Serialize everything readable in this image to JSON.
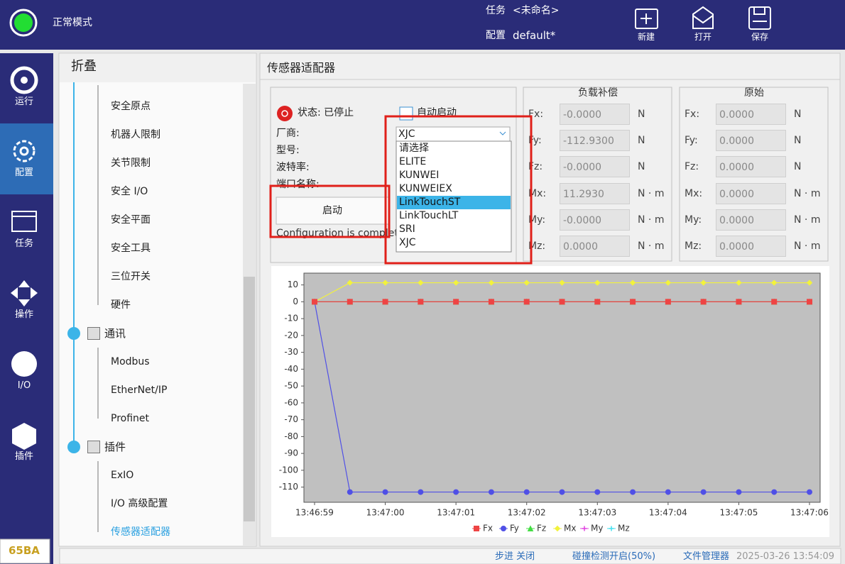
{
  "header": {
    "mode": "正常模式",
    "task_label": "任务",
    "task_value": "<未命名>",
    "config_label": "配置",
    "config_value": "default*",
    "buttons": [
      "新建",
      "打开",
      "保存"
    ]
  },
  "sidebar": {
    "items": [
      "运行",
      "配置",
      "任务",
      "操作",
      "I/O",
      "插件"
    ],
    "badge": "65BA"
  },
  "tree": {
    "title": "折叠",
    "safety_items": [
      "安全原点",
      "机器人限制",
      "关节限制",
      "安全 I/O",
      "安全平面",
      "安全工具",
      "三位开关",
      "硬件"
    ],
    "groups": [
      {
        "label": "通讯",
        "items": [
          "Modbus",
          "EtherNet/IP",
          "Profinet"
        ]
      },
      {
        "label": "插件",
        "items": [
          "ExIO",
          "I/O 高级配置",
          "传感器适配器"
        ]
      }
    ]
  },
  "panel": {
    "title": "传感器适配器",
    "status": "状态: 已停止",
    "auto_start": "自动启动",
    "fields": [
      "厂商:",
      "型号:",
      "波特率:",
      "端口名称:"
    ],
    "vendor_value": "XJC",
    "vendor_options": [
      "请选择",
      "ELITE",
      "KUNWEI",
      "KUNWEIEX",
      "LinkTouchST",
      "LinkTouchLT",
      "SRI",
      "XJC"
    ],
    "start_button": "启动",
    "message": "Configuration is complete"
  },
  "load_comp": {
    "title": "负载补偿",
    "rows": [
      {
        "label": "Fx:",
        "value": "-0.0000",
        "unit": "N"
      },
      {
        "label": "Fy:",
        "value": "-112.9300",
        "unit": "N"
      },
      {
        "label": "Fz:",
        "value": "-0.0000",
        "unit": "N"
      },
      {
        "label": "Mx:",
        "value": "11.2930",
        "unit": "N · m"
      },
      {
        "label": "My:",
        "value": "-0.0000",
        "unit": "N · m"
      },
      {
        "label": "Mz:",
        "value": "0.0000",
        "unit": "N · m"
      }
    ]
  },
  "raw": {
    "title": "原始",
    "rows": [
      {
        "label": "Fx:",
        "value": "0.0000",
        "unit": "N"
      },
      {
        "label": "Fy:",
        "value": "0.0000",
        "unit": "N"
      },
      {
        "label": "Fz:",
        "value": "0.0000",
        "unit": "N"
      },
      {
        "label": "Mx:",
        "value": "0.0000",
        "unit": "N · m"
      },
      {
        "label": "My:",
        "value": "0.0000",
        "unit": "N · m"
      },
      {
        "label": "Mz:",
        "value": "0.0000",
        "unit": "N · m"
      }
    ]
  },
  "chart_data": {
    "type": "line",
    "categories": [
      "13:46:59",
      null,
      "13:47:00",
      null,
      "13:47:01",
      null,
      "13:47:02",
      null,
      "13:47:03",
      null,
      "13:47:04",
      null,
      "13:47:05",
      null,
      "13:47:06"
    ],
    "ylim": [
      -119,
      17
    ],
    "yticks": [
      10,
      0,
      -10,
      -20,
      -30,
      -40,
      -50,
      -60,
      -70,
      -80,
      -90,
      -100,
      -110
    ],
    "grid": false,
    "background": "#c0c0c0",
    "series": [
      {
        "name": "Fx",
        "color": "#ee4444",
        "marker": "square",
        "values": [
          0,
          0,
          0,
          0,
          0,
          0,
          0,
          0,
          0,
          0,
          0,
          0,
          0,
          0,
          0
        ]
      },
      {
        "name": "Fy",
        "color": "#5050e6",
        "marker": "circle",
        "values": [
          0,
          -112.93,
          -112.93,
          -112.93,
          -112.93,
          -112.93,
          -112.93,
          -112.93,
          -112.93,
          -112.93,
          -112.93,
          -112.93,
          -112.93,
          -112.93,
          -112.93
        ]
      },
      {
        "name": "Fz",
        "color": "#44dd44",
        "marker": "triangle",
        "values": [
          0,
          0,
          0,
          0,
          0,
          0,
          0,
          0,
          0,
          0,
          0,
          0,
          0,
          0,
          0
        ]
      },
      {
        "name": "Mx",
        "color": "#f2f23c",
        "marker": "diamond",
        "values": [
          0,
          11.293,
          11.293,
          11.293,
          11.293,
          11.293,
          11.293,
          11.293,
          11.293,
          11.293,
          11.293,
          11.293,
          11.293,
          11.293,
          11.293
        ]
      },
      {
        "name": "My",
        "color": "#e040e0",
        "marker": "cross",
        "values": [
          0,
          0,
          0,
          0,
          0,
          0,
          0,
          0,
          0,
          0,
          0,
          0,
          0,
          0,
          0
        ]
      },
      {
        "name": "Mz",
        "color": "#40e0f0",
        "marker": "star",
        "values": [
          0,
          0,
          0,
          0,
          0,
          0,
          0,
          0,
          0,
          0,
          0,
          0,
          0,
          0,
          0
        ]
      }
    ]
  },
  "status_bar": {
    "step": "步进 关闭",
    "collision": "碰撞检测开启(50%)",
    "files": "文件管理器",
    "time": "2025-03-26 13:54:09"
  }
}
